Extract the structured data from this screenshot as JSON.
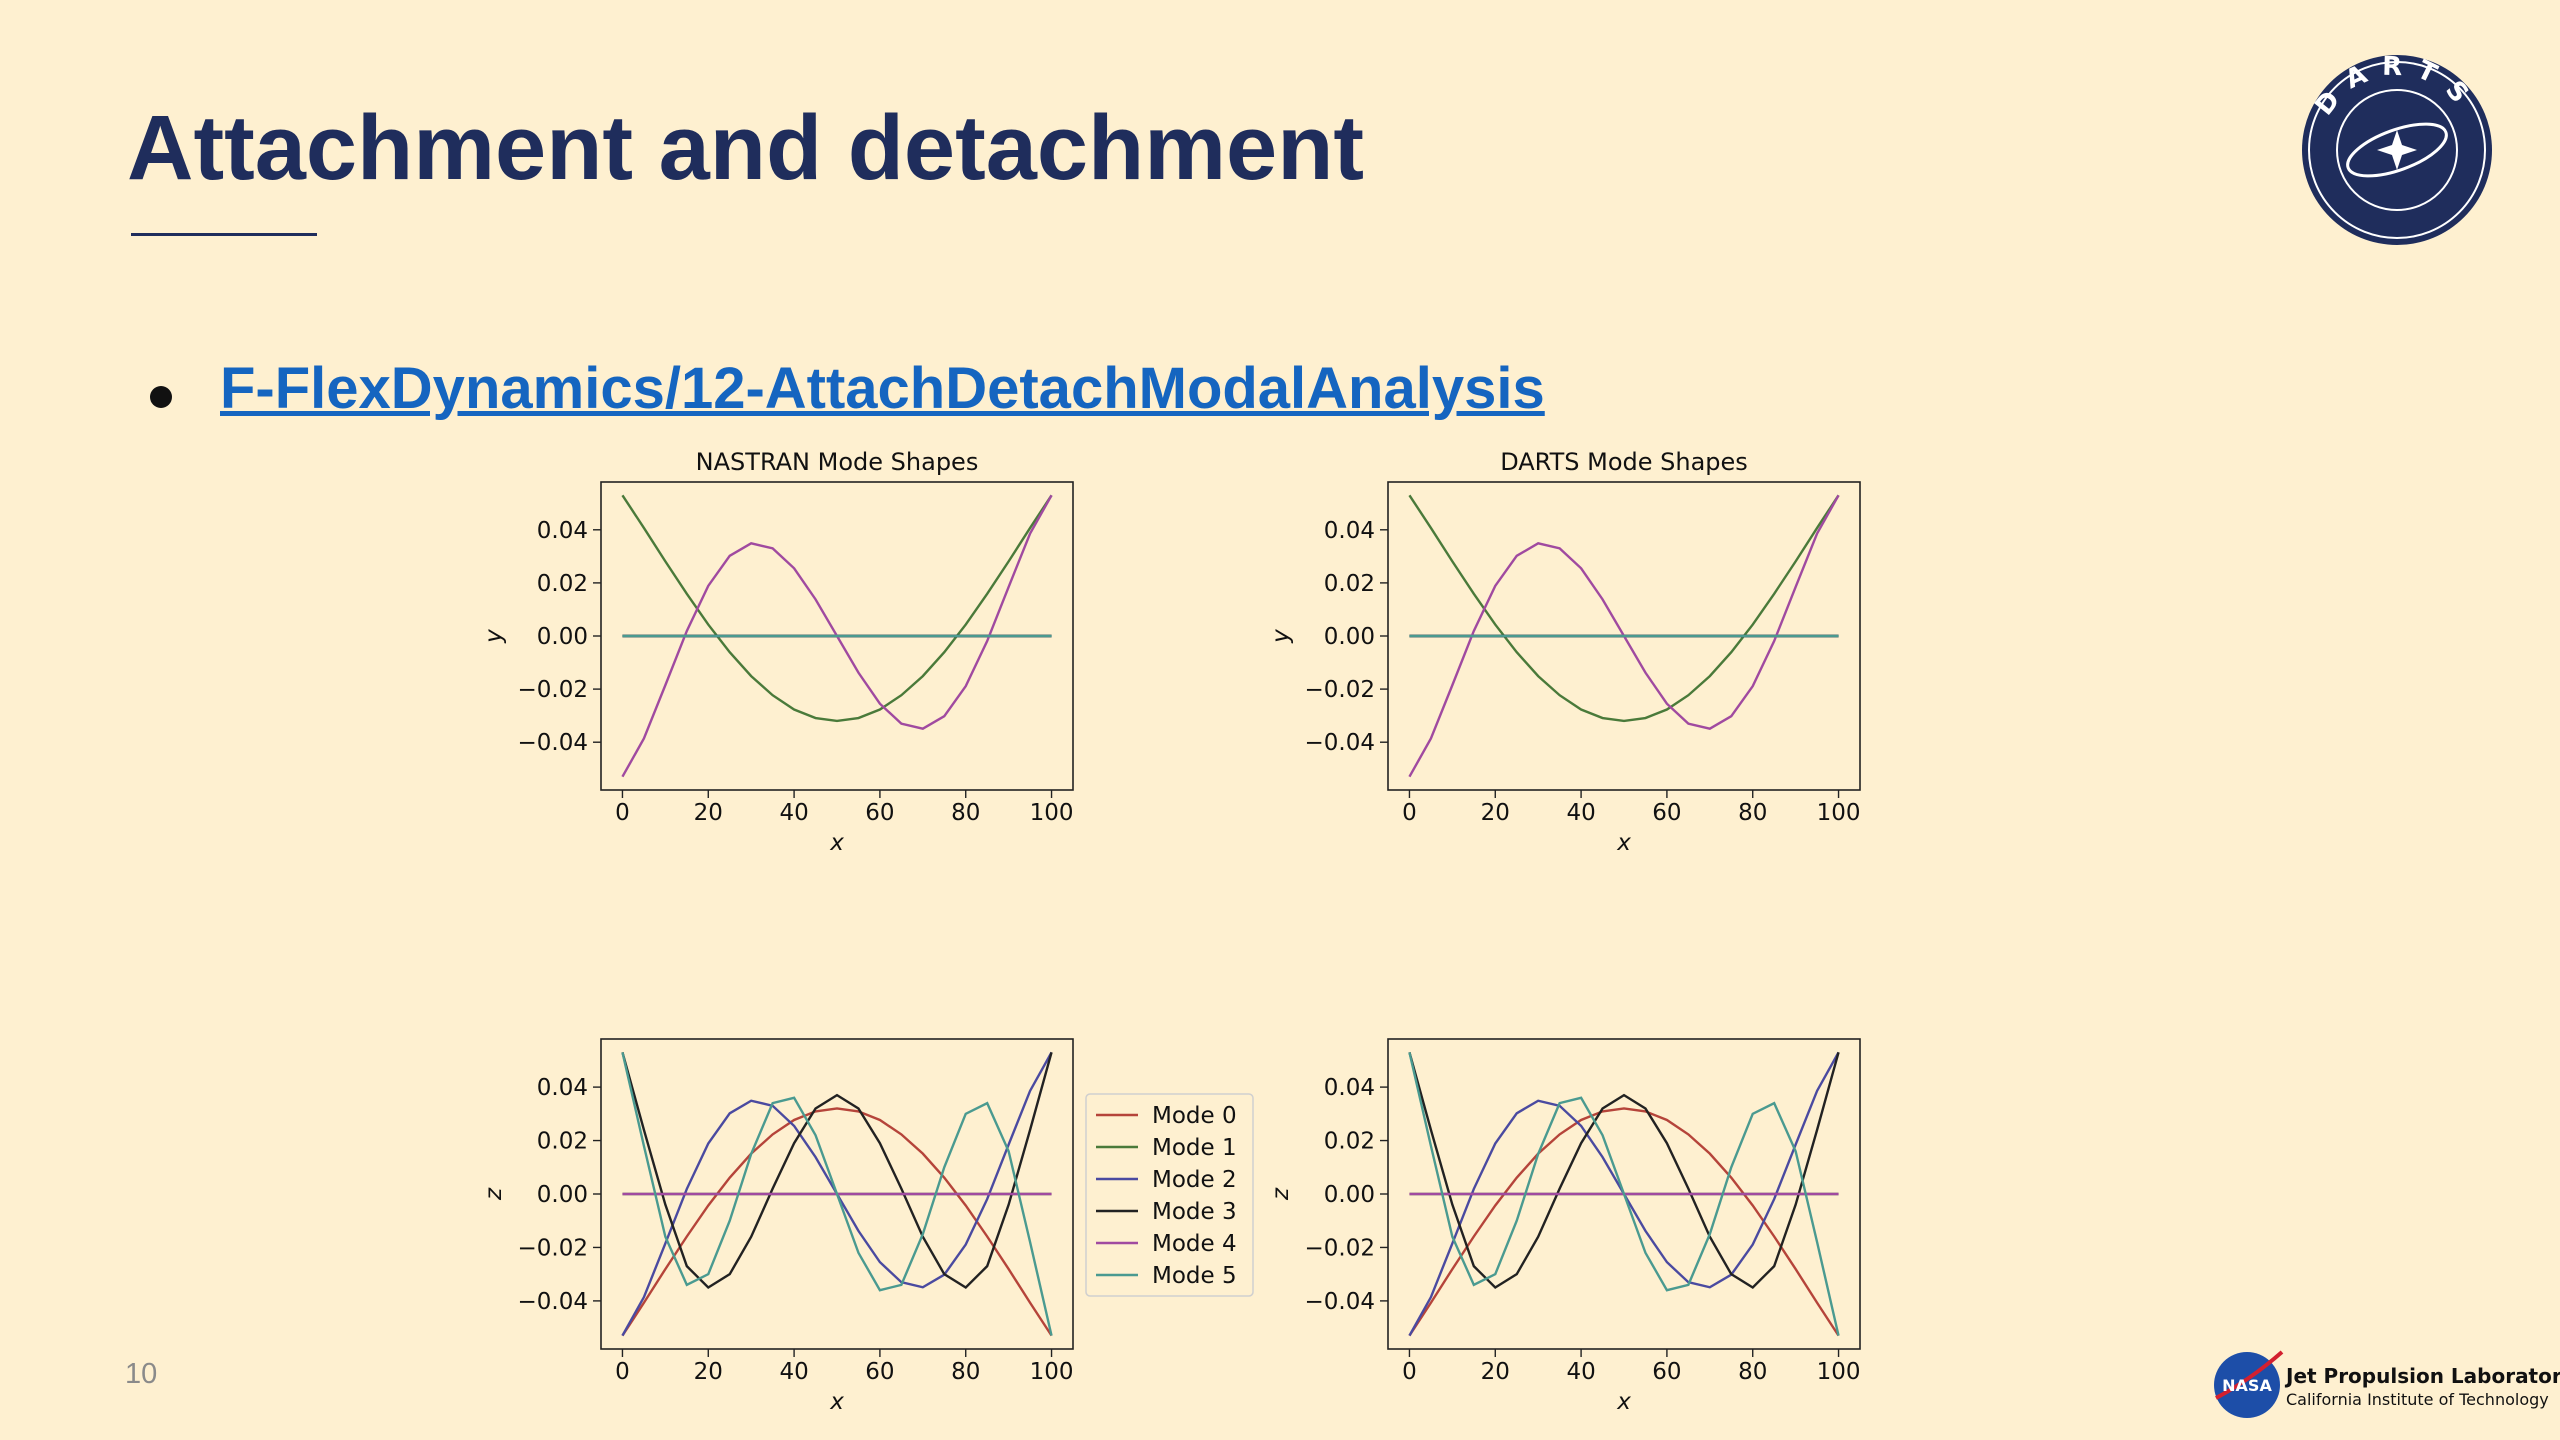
{
  "title": "Attachment and detachment",
  "link": "F-FlexDynamics/12-AttachDetachModalAnalysis",
  "page_number": "10",
  "logos": {
    "darts": "DARTS",
    "nasa": "NASA",
    "jpl_name": "Jet Propulsion Laboratory",
    "jpl_sub": "California Institute of Technology"
  },
  "chart_data": [
    {
      "type": "line",
      "title": "NASTRAN Mode Shapes",
      "xlabel": "x",
      "ylabel": "y",
      "x": [
        0,
        5,
        10,
        15,
        20,
        25,
        30,
        35,
        40,
        45,
        50,
        55,
        60,
        65,
        70,
        75,
        80,
        85,
        90,
        95,
        100
      ],
      "xlim": [
        -5,
        105
      ],
      "ylim": [
        -0.058,
        0.058
      ],
      "xticks": [
        0,
        20,
        40,
        60,
        80,
        100
      ],
      "yticks": [
        {
          "value": -0.04,
          "label": "−0.04"
        },
        {
          "value": -0.02,
          "label": "−0.02"
        },
        {
          "value": 0,
          "label": "0.00"
        },
        0.02,
        0.04
      ],
      "series": [
        {
          "color": "#b5443a",
          "values": [
            0,
            0,
            0,
            0,
            0,
            0,
            0,
            0,
            0,
            0,
            0,
            0,
            0,
            0,
            0,
            0,
            0,
            0,
            0,
            0,
            0
          ]
        },
        {
          "color": "#4a7a3a",
          "values": [
            0.053,
            0.0407,
            0.0281,
            0.0159,
            0.0043,
            -0.0061,
            -0.0151,
            -0.0223,
            -0.0277,
            -0.0309,
            -0.032,
            -0.0309,
            -0.0277,
            -0.0223,
            -0.0151,
            -0.0061,
            0.0043,
            0.0159,
            0.0281,
            0.0407,
            0.053
          ]
        },
        {
          "color": "#4a4aa0",
          "values": [
            0,
            0,
            0,
            0,
            0,
            0,
            0,
            0,
            0,
            0,
            0,
            0,
            0,
            0,
            0,
            0,
            0,
            0,
            0,
            0,
            0
          ]
        },
        {
          "color": "#222222",
          "values": [
            0,
            0,
            0,
            0,
            0,
            0,
            0,
            0,
            0,
            0,
            0,
            0,
            0,
            0,
            0,
            0,
            0,
            0,
            0,
            0,
            0
          ]
        },
        {
          "color": "#a04aa0",
          "values": [
            -0.053,
            -0.0386,
            -0.0185,
            0.0019,
            0.0189,
            0.0302,
            0.0349,
            0.033,
            0.0255,
            0.0138,
            0,
            -0.0138,
            -0.0255,
            -0.033,
            -0.0349,
            -0.0302,
            -0.0189,
            -0.0019,
            0.0185,
            0.0386,
            0.053
          ]
        },
        {
          "color": "#4a9a90",
          "values": [
            0,
            0,
            0,
            0,
            0,
            0,
            0,
            0,
            0,
            0,
            0,
            0,
            0,
            0,
            0,
            0,
            0,
            0,
            0,
            0,
            0
          ]
        }
      ]
    },
    {
      "type": "line",
      "title": "DARTS Mode Shapes",
      "xlabel": "x",
      "ylabel": "y",
      "x": [
        0,
        5,
        10,
        15,
        20,
        25,
        30,
        35,
        40,
        45,
        50,
        55,
        60,
        65,
        70,
        75,
        80,
        85,
        90,
        95,
        100
      ],
      "xlim": [
        -5,
        105
      ],
      "ylim": [
        -0.058,
        0.058
      ],
      "xticks": [
        0,
        20,
        40,
        60,
        80,
        100
      ],
      "yticks": [
        {
          "value": -0.04,
          "label": "−0.04"
        },
        {
          "value": -0.02,
          "label": "−0.02"
        },
        {
          "value": 0,
          "label": "0.00"
        },
        0.02,
        0.04
      ],
      "series": [
        {
          "color": "#b5443a",
          "values": [
            0,
            0,
            0,
            0,
            0,
            0,
            0,
            0,
            0,
            0,
            0,
            0,
            0,
            0,
            0,
            0,
            0,
            0,
            0,
            0,
            0
          ]
        },
        {
          "color": "#4a7a3a",
          "values": [
            0.053,
            0.0407,
            0.0281,
            0.0159,
            0.0043,
            -0.0061,
            -0.0151,
            -0.0223,
            -0.0277,
            -0.0309,
            -0.032,
            -0.0309,
            -0.0277,
            -0.0223,
            -0.0151,
            -0.0061,
            0.0043,
            0.0159,
            0.0281,
            0.0407,
            0.053
          ]
        },
        {
          "color": "#4a4aa0",
          "values": [
            0,
            0,
            0,
            0,
            0,
            0,
            0,
            0,
            0,
            0,
            0,
            0,
            0,
            0,
            0,
            0,
            0,
            0,
            0,
            0,
            0
          ]
        },
        {
          "color": "#222222",
          "values": [
            0,
            0,
            0,
            0,
            0,
            0,
            0,
            0,
            0,
            0,
            0,
            0,
            0,
            0,
            0,
            0,
            0,
            0,
            0,
            0,
            0
          ]
        },
        {
          "color": "#a04aa0",
          "values": [
            -0.053,
            -0.0386,
            -0.0185,
            0.0019,
            0.0189,
            0.0302,
            0.0349,
            0.033,
            0.0255,
            0.0138,
            0,
            -0.0138,
            -0.0255,
            -0.033,
            -0.0349,
            -0.0302,
            -0.0189,
            -0.0019,
            0.0185,
            0.0386,
            0.053
          ]
        },
        {
          "color": "#4a9a90",
          "values": [
            0,
            0,
            0,
            0,
            0,
            0,
            0,
            0,
            0,
            0,
            0,
            0,
            0,
            0,
            0,
            0,
            0,
            0,
            0,
            0,
            0
          ]
        }
      ]
    },
    {
      "type": "line",
      "xlabel": "x",
      "ylabel": "z",
      "legend": "right",
      "x": [
        0,
        5,
        10,
        15,
        20,
        25,
        30,
        35,
        40,
        45,
        50,
        55,
        60,
        65,
        70,
        75,
        80,
        85,
        90,
        95,
        100
      ],
      "xlim": [
        -5,
        105
      ],
      "ylim": [
        -0.058,
        0.058
      ],
      "xticks": [
        0,
        20,
        40,
        60,
        80,
        100
      ],
      "yticks": [
        {
          "value": -0.04,
          "label": "−0.04"
        },
        {
          "value": -0.02,
          "label": "−0.02"
        },
        {
          "value": 0,
          "label": "0.00"
        },
        0.02,
        0.04
      ],
      "series": [
        {
          "name": "Mode 0",
          "color": "#b5443a",
          "values": [
            -0.053,
            -0.0407,
            -0.0281,
            -0.0159,
            -0.0043,
            0.0061,
            0.0151,
            0.0223,
            0.0277,
            0.0309,
            0.032,
            0.0309,
            0.0277,
            0.0223,
            0.0151,
            0.0061,
            -0.0043,
            -0.0159,
            -0.0281,
            -0.0407,
            -0.053
          ]
        },
        {
          "name": "Mode 1",
          "color": "#4a7a3a",
          "values": [
            0,
            0,
            0,
            0,
            0,
            0,
            0,
            0,
            0,
            0,
            0,
            0,
            0,
            0,
            0,
            0,
            0,
            0,
            0,
            0,
            0
          ]
        },
        {
          "name": "Mode 2",
          "color": "#4a4aa0",
          "values": [
            -0.053,
            -0.0386,
            -0.0185,
            0.0019,
            0.0189,
            0.0302,
            0.0349,
            0.033,
            0.0255,
            0.0138,
            0,
            -0.0138,
            -0.0255,
            -0.033,
            -0.0349,
            -0.0302,
            -0.0189,
            -0.0019,
            0.0185,
            0.0386,
            0.053
          ]
        },
        {
          "name": "Mode 3",
          "color": "#222222",
          "values": [
            0.053,
            0.024,
            -0.004,
            -0.027,
            -0.035,
            -0.03,
            -0.016,
            0.002,
            0.019,
            0.032,
            0.037,
            0.032,
            0.019,
            0.002,
            -0.016,
            -0.03,
            -0.035,
            -0.027,
            -0.004,
            0.024,
            0.053
          ]
        },
        {
          "name": "Mode 4",
          "color": "#a04aa0",
          "values": [
            0,
            0,
            0,
            0,
            0,
            0,
            0,
            0,
            0,
            0,
            0,
            0,
            0,
            0,
            0,
            0,
            0,
            0,
            0,
            0,
            0
          ]
        },
        {
          "name": "Mode 5",
          "color": "#4a9a90",
          "values": [
            0.053,
            0.018,
            -0.016,
            -0.034,
            -0.03,
            -0.01,
            0.015,
            0.034,
            0.036,
            0.022,
            0,
            -0.022,
            -0.036,
            -0.034,
            -0.015,
            0.01,
            0.03,
            0.034,
            0.016,
            -0.018,
            -0.053
          ]
        }
      ]
    },
    {
      "type": "line",
      "xlabel": "x",
      "ylabel": "z",
      "x": [
        0,
        5,
        10,
        15,
        20,
        25,
        30,
        35,
        40,
        45,
        50,
        55,
        60,
        65,
        70,
        75,
        80,
        85,
        90,
        95,
        100
      ],
      "xlim": [
        -5,
        105
      ],
      "ylim": [
        -0.058,
        0.058
      ],
      "xticks": [
        0,
        20,
        40,
        60,
        80,
        100
      ],
      "yticks": [
        {
          "value": -0.04,
          "label": "−0.04"
        },
        {
          "value": -0.02,
          "label": "−0.02"
        },
        {
          "value": 0,
          "label": "0.00"
        },
        0.02,
        0.04
      ],
      "series": [
        {
          "color": "#b5443a",
          "values": [
            -0.053,
            -0.0407,
            -0.0281,
            -0.0159,
            -0.0043,
            0.0061,
            0.0151,
            0.0223,
            0.0277,
            0.0309,
            0.032,
            0.0309,
            0.0277,
            0.0223,
            0.0151,
            0.0061,
            -0.0043,
            -0.0159,
            -0.0281,
            -0.0407,
            -0.053
          ]
        },
        {
          "color": "#4a7a3a",
          "values": [
            0,
            0,
            0,
            0,
            0,
            0,
            0,
            0,
            0,
            0,
            0,
            0,
            0,
            0,
            0,
            0,
            0,
            0,
            0,
            0,
            0
          ]
        },
        {
          "color": "#4a4aa0",
          "values": [
            -0.053,
            -0.0386,
            -0.0185,
            0.0019,
            0.0189,
            0.0302,
            0.0349,
            0.033,
            0.0255,
            0.0138,
            0,
            -0.0138,
            -0.0255,
            -0.033,
            -0.0349,
            -0.0302,
            -0.0189,
            -0.0019,
            0.0185,
            0.0386,
            0.053
          ]
        },
        {
          "color": "#222222",
          "values": [
            0.053,
            0.024,
            -0.004,
            -0.027,
            -0.035,
            -0.03,
            -0.016,
            0.002,
            0.019,
            0.032,
            0.037,
            0.032,
            0.019,
            0.002,
            -0.016,
            -0.03,
            -0.035,
            -0.027,
            -0.004,
            0.024,
            0.053
          ]
        },
        {
          "color": "#a04aa0",
          "values": [
            0,
            0,
            0,
            0,
            0,
            0,
            0,
            0,
            0,
            0,
            0,
            0,
            0,
            0,
            0,
            0,
            0,
            0,
            0,
            0,
            0
          ]
        },
        {
          "color": "#4a9a90",
          "values": [
            0.053,
            0.018,
            -0.016,
            -0.034,
            -0.03,
            -0.01,
            0.015,
            0.034,
            0.036,
            0.022,
            0,
            -0.022,
            -0.036,
            -0.034,
            -0.015,
            0.01,
            0.03,
            0.034,
            0.016,
            -0.018,
            -0.053
          ]
        }
      ]
    }
  ]
}
